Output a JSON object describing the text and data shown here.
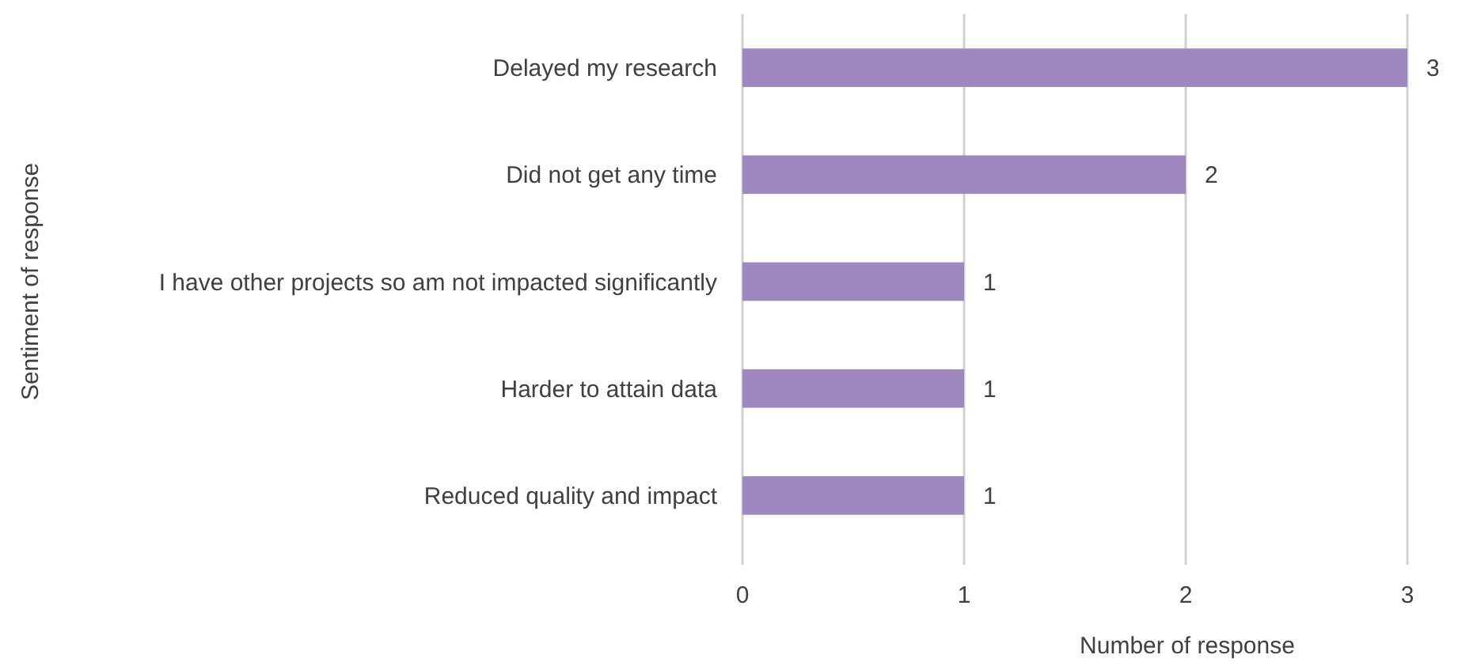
{
  "chart_data": {
    "type": "bar",
    "orientation": "horizontal",
    "xlabel": "Number of response",
    "ylabel": "Sentiment of response",
    "categories": [
      "Delayed my research",
      "Did not get any time",
      "I have other projects so am not impacted significantly",
      "Harder to attain data",
      "Reduced quality and impact"
    ],
    "values": [
      3,
      2,
      1,
      1,
      1
    ],
    "color": "#9e86bf",
    "xlim": [
      0,
      3
    ],
    "xticks": [
      0,
      1,
      2,
      3
    ],
    "grid": "x",
    "data_labels": true
  }
}
